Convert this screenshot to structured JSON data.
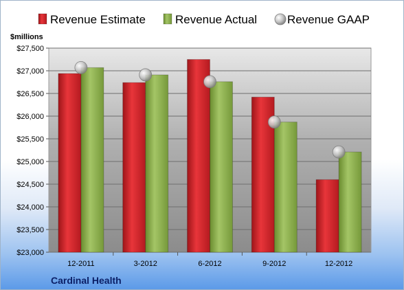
{
  "chart_data": {
    "type": "bar",
    "categories": [
      "12-2011",
      "3-2012",
      "6-2012",
      "9-2012",
      "12-2012"
    ],
    "series": [
      {
        "name": "Revenue Estimate",
        "kind": "bar",
        "color": "#d8262c",
        "values": [
          26940,
          26740,
          27250,
          26420,
          24600
        ]
      },
      {
        "name": "Revenue Actual",
        "kind": "bar",
        "color": "#8cb049",
        "values": [
          27070,
          26910,
          26760,
          25870,
          25210
        ]
      },
      {
        "name": "Revenue GAAP",
        "kind": "marker",
        "color": "#c8c8c8",
        "values": [
          27070,
          26910,
          26760,
          25870,
          25210
        ]
      }
    ],
    "ylabel": "$millions",
    "ylim": [
      23000,
      27500
    ],
    "yticks": [
      23000,
      23500,
      24000,
      24500,
      25000,
      25500,
      26000,
      26500,
      27000,
      27500
    ],
    "ytick_labels": [
      "$23,000",
      "$23,500",
      "$24,000",
      "$24,500",
      "$25,000",
      "$25,500",
      "$26,000",
      "$26,500",
      "$27,000",
      "$27,500"
    ],
    "grid": true,
    "legend": "top",
    "footer": "Cardinal Health"
  }
}
